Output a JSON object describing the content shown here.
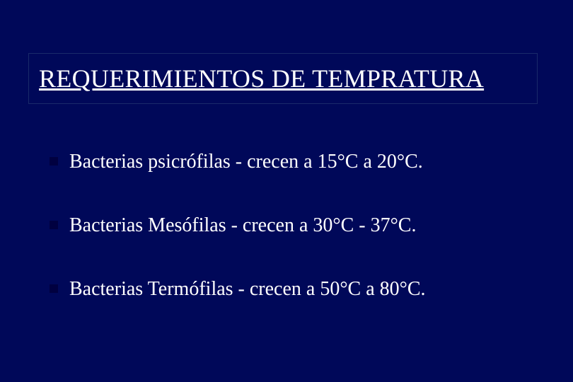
{
  "slide": {
    "background_color": "#000859",
    "title": {
      "text": "REQUERIMIENTOS DE TEMPRATURA",
      "font_size": 36,
      "color": "#ffffff",
      "underline": true,
      "box_border_color": "#1a2a6a"
    },
    "bullets": [
      {
        "text": "Bacterias psicrófilas - crecen a 15°C a 20°C.",
        "color": "#ffffff",
        "font_size": 28,
        "marker_color": "#000040"
      },
      {
        "text": "Bacterias Mesófilas - crecen a 30°C - 37°C.",
        "color": "#ffffff",
        "font_size": 28,
        "marker_color": "#000040"
      },
      {
        "text": "Bacterias Termófilas - crecen a 50°C a 80°C.",
        "color": "#ffffff",
        "font_size": 28,
        "marker_color": "#000040"
      }
    ]
  }
}
